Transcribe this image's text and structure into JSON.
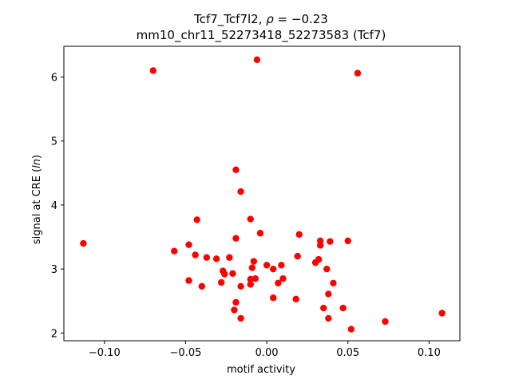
{
  "chart_data": {
    "type": "scatter",
    "title_line1_prefix": "Tcf7_Tcf7l2, ",
    "title_line1_rho": "ρ",
    "title_line1_value": " = −0.23",
    "title_line2": "mm10_chr11_52273418_52273583 (Tcf7)",
    "xlabel": "motif activity",
    "ylabel_prefix": "signal at CRE (",
    "ylabel_italic": "ln",
    "ylabel_suffix": ")",
    "xlim": [
      -0.125,
      0.119
    ],
    "ylim": [
      1.88,
      6.48
    ],
    "xticks": [
      -0.1,
      -0.05,
      0.0,
      0.05,
      0.1
    ],
    "xtick_labels": [
      "−0.10",
      "−0.05",
      "0.00",
      "0.05",
      "0.10"
    ],
    "yticks": [
      2,
      3,
      4,
      5,
      6
    ],
    "ytick_labels": [
      "2",
      "3",
      "4",
      "5",
      "6"
    ],
    "grid": false,
    "marker_color": "#ff0000",
    "points": [
      {
        "x": -0.113,
        "y": 3.4
      },
      {
        "x": -0.07,
        "y": 6.1
      },
      {
        "x": -0.057,
        "y": 3.28
      },
      {
        "x": -0.048,
        "y": 3.38
      },
      {
        "x": -0.048,
        "y": 2.82
      },
      {
        "x": -0.044,
        "y": 3.22
      },
      {
        "x": -0.043,
        "y": 3.77
      },
      {
        "x": -0.04,
        "y": 2.73
      },
      {
        "x": -0.037,
        "y": 3.18
      },
      {
        "x": -0.031,
        "y": 3.16
      },
      {
        "x": -0.028,
        "y": 2.79
      },
      {
        "x": -0.027,
        "y": 2.97
      },
      {
        "x": -0.026,
        "y": 2.92
      },
      {
        "x": -0.023,
        "y": 3.18
      },
      {
        "x": -0.021,
        "y": 2.93
      },
      {
        "x": -0.02,
        "y": 2.36
      },
      {
        "x": -0.019,
        "y": 4.55
      },
      {
        "x": -0.019,
        "y": 3.48
      },
      {
        "x": -0.019,
        "y": 2.48
      },
      {
        "x": -0.016,
        "y": 4.21
      },
      {
        "x": -0.016,
        "y": 2.73
      },
      {
        "x": -0.016,
        "y": 2.23
      },
      {
        "x": -0.01,
        "y": 3.78
      },
      {
        "x": -0.01,
        "y": 2.84
      },
      {
        "x": -0.01,
        "y": 2.76
      },
      {
        "x": -0.009,
        "y": 3.02
      },
      {
        "x": -0.008,
        "y": 3.12
      },
      {
        "x": -0.007,
        "y": 2.85
      },
      {
        "x": -0.006,
        "y": 6.27
      },
      {
        "x": -0.004,
        "y": 3.56
      },
      {
        "x": 0.0,
        "y": 3.06
      },
      {
        "x": 0.004,
        "y": 3.0
      },
      {
        "x": 0.004,
        "y": 2.55
      },
      {
        "x": 0.007,
        "y": 2.78
      },
      {
        "x": 0.009,
        "y": 3.06
      },
      {
        "x": 0.01,
        "y": 2.85
      },
      {
        "x": 0.018,
        "y": 2.53
      },
      {
        "x": 0.019,
        "y": 3.2
      },
      {
        "x": 0.02,
        "y": 3.54
      },
      {
        "x": 0.03,
        "y": 3.1
      },
      {
        "x": 0.032,
        "y": 3.15
      },
      {
        "x": 0.033,
        "y": 3.44
      },
      {
        "x": 0.033,
        "y": 3.37
      },
      {
        "x": 0.035,
        "y": 2.39
      },
      {
        "x": 0.037,
        "y": 3.0
      },
      {
        "x": 0.038,
        "y": 2.61
      },
      {
        "x": 0.038,
        "y": 2.23
      },
      {
        "x": 0.039,
        "y": 3.43
      },
      {
        "x": 0.041,
        "y": 2.78
      },
      {
        "x": 0.047,
        "y": 2.39
      },
      {
        "x": 0.05,
        "y": 3.44
      },
      {
        "x": 0.052,
        "y": 2.06
      },
      {
        "x": 0.056,
        "y": 6.06
      },
      {
        "x": 0.073,
        "y": 2.18
      },
      {
        "x": 0.108,
        "y": 2.31
      }
    ]
  }
}
